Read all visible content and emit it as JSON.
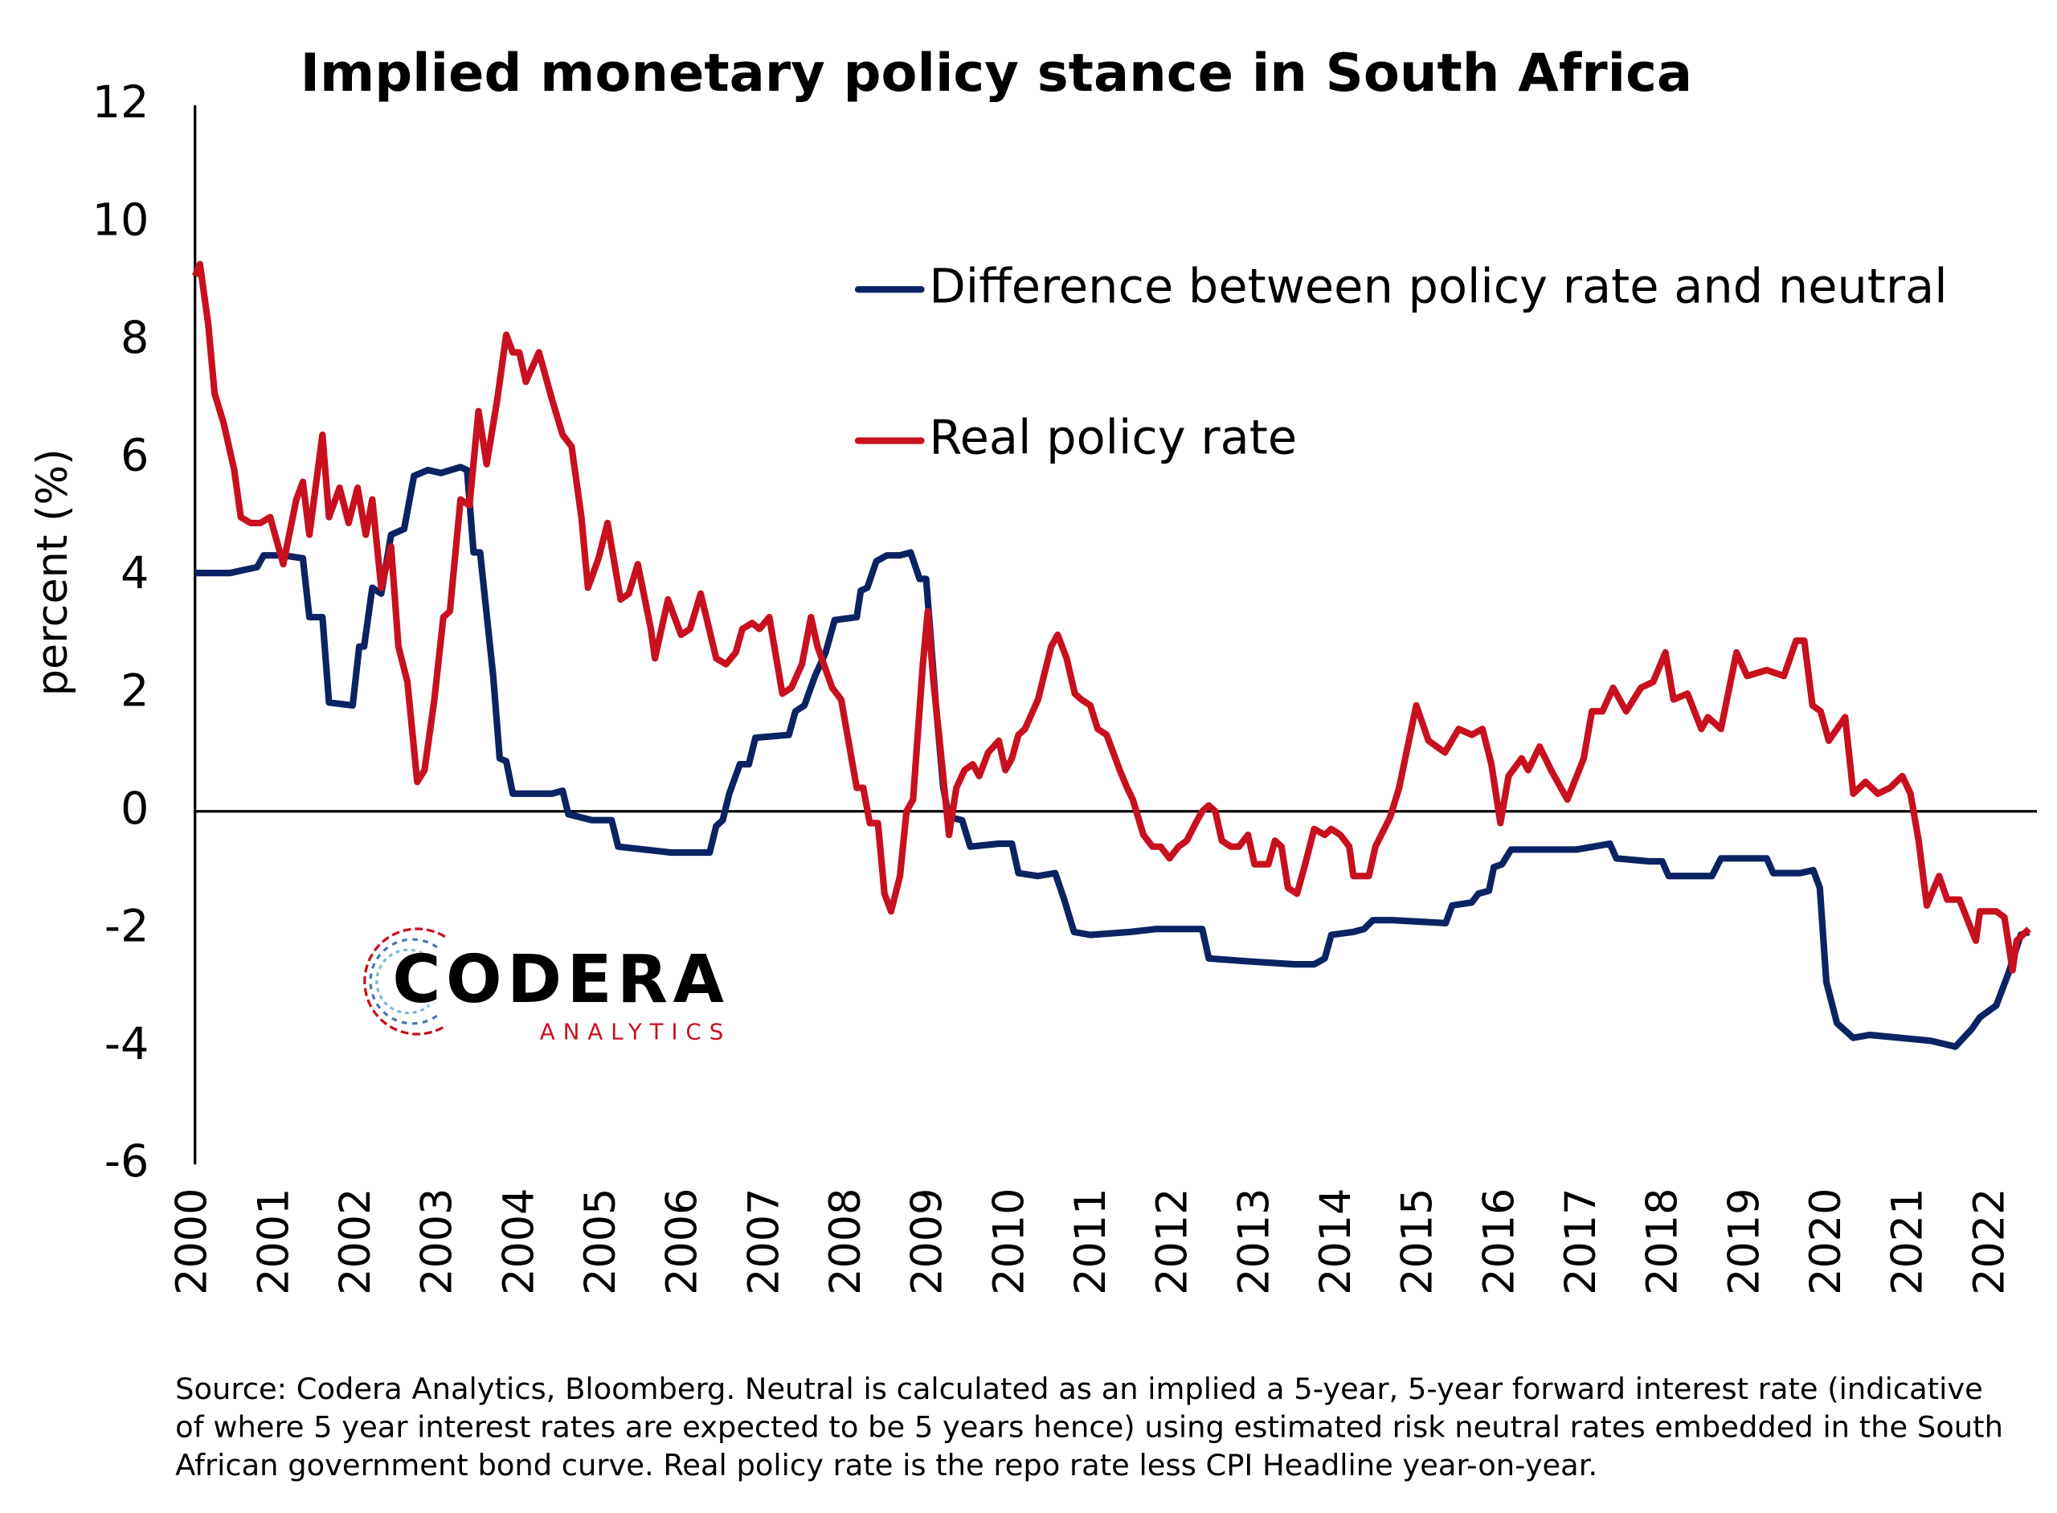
{
  "chart_data": {
    "type": "line",
    "title": "Implied monetary policy stance in South Africa",
    "y_label": "percent (%)",
    "xlim": [
      2000,
      2022.5
    ],
    "xticks": [
      2000,
      2001,
      2002,
      2003,
      2004,
      2005,
      2006,
      2007,
      2008,
      2009,
      2010,
      2011,
      2012,
      2013,
      2014,
      2015,
      2016,
      2017,
      2018,
      2019,
      2020,
      2021,
      2022
    ],
    "ylim": [
      -6,
      12
    ],
    "yticks": [
      12,
      10,
      8,
      6,
      4,
      2,
      0,
      -2,
      -4,
      -6
    ],
    "grid": false,
    "series": [
      {
        "name": "Difference between policy rate and neutral",
        "color": "#0c2363",
        "x": [
          2000,
          2000.43,
          2000.59,
          2000.76,
          2000.84,
          2001.08,
          2001.32,
          2001.4,
          2001.56,
          2001.64,
          2001.93,
          2002.01,
          2002.07,
          2002.17,
          2002.28,
          2002.4,
          2002.56,
          2002.68,
          2002.85,
          2003.01,
          2003.25,
          2003.33,
          2003.41,
          2003.49,
          2003.65,
          2003.73,
          2003.81,
          2003.89,
          2004.21,
          2004.37,
          2004.5,
          2004.57,
          2004.86,
          2005.1,
          2005.18,
          2005.5,
          2005.82,
          2006.3,
          2006.38,
          2006.46,
          2006.54,
          2006.67,
          2006.78,
          2006.86,
          2007.27,
          2007.35,
          2007.46,
          2007.59,
          2007.72,
          2007.83,
          2008.1,
          2008.15,
          2008.23,
          2008.34,
          2008.47,
          2008.63,
          2008.76,
          2008.87,
          2008.95,
          2009.07,
          2009.16,
          2009.23,
          2009.39,
          2009.49,
          2009.84,
          2010,
          2010.08,
          2010.32,
          2010.53,
          2010.64,
          2010.76,
          2010.96,
          2011.45,
          2011.77,
          2012.33,
          2012.41,
          2012.89,
          2013.46,
          2013.7,
          2013.83,
          2013.91,
          2014.18,
          2014.31,
          2014.42,
          2014.66,
          2015.31,
          2015.39,
          2015.63,
          2015.71,
          2015.84,
          2015.9,
          2016,
          2016.11,
          2016.91,
          2017.12,
          2017.32,
          2017.4,
          2017.8,
          2017.96,
          2018.04,
          2018.57,
          2018.68,
          2019.24,
          2019.32,
          2019.65,
          2019.81,
          2019.89,
          2019.97,
          2020.1,
          2020.3,
          2020.5,
          2021.25,
          2021.55,
          2021.75,
          2021.85,
          2022.05,
          2022.2,
          2022.35,
          2022.45
        ],
        "values": [
          4.05,
          4.05,
          4.1,
          4.15,
          4.35,
          4.35,
          4.3,
          3.3,
          3.3,
          1.85,
          1.8,
          2.8,
          2.8,
          3.8,
          3.7,
          4.7,
          4.8,
          5.7,
          5.8,
          5.75,
          5.85,
          5.8,
          4.4,
          4.4,
          2.3,
          0.9,
          0.85,
          0.3,
          0.3,
          0.3,
          0.35,
          -0.05,
          -0.15,
          -0.15,
          -0.6,
          -0.65,
          -0.7,
          -0.7,
          -0.25,
          -0.15,
          0.3,
          0.8,
          0.8,
          1.25,
          1.3,
          1.7,
          1.8,
          2.3,
          2.7,
          3.25,
          3.3,
          3.75,
          3.8,
          4.25,
          4.35,
          4.35,
          4.4,
          3.95,
          3.95,
          1.8,
          0.4,
          -0.1,
          -0.15,
          -0.6,
          -0.55,
          -0.55,
          -1.05,
          -1.1,
          -1.05,
          -1.5,
          -2.05,
          -2.1,
          -2.05,
          -2,
          -2,
          -2.5,
          -2.55,
          -2.6,
          -2.6,
          -2.5,
          -2.1,
          -2.05,
          -2,
          -1.85,
          -1.85,
          -1.9,
          -1.6,
          -1.55,
          -1.4,
          -1.35,
          -0.95,
          -0.9,
          -0.65,
          -0.65,
          -0.6,
          -0.55,
          -0.8,
          -0.85,
          -0.85,
          -1.1,
          -1.1,
          -0.8,
          -0.8,
          -1.05,
          -1.05,
          -1,
          -1.3,
          -2.9,
          -3.6,
          -3.85,
          -3.8,
          -3.9,
          -4,
          -3.7,
          -3.5,
          -3.3,
          -2.75,
          -2.1,
          -2.05
        ]
      },
      {
        "name": "Real policy rate",
        "color": "#c8101e",
        "x": [
          2000,
          2000.06,
          2000.16,
          2000.24,
          2000.35,
          2000.48,
          2000.56,
          2000.68,
          2000.8,
          2000.92,
          2001.08,
          2001.24,
          2001.32,
          2001.4,
          2001.56,
          2001.64,
          2001.77,
          2001.88,
          2001.99,
          2002.09,
          2002.17,
          2002.28,
          2002.4,
          2002.49,
          2002.6,
          2002.72,
          2002.81,
          2002.93,
          2003.04,
          2003.12,
          2003.25,
          2003.36,
          2003.47,
          2003.57,
          2003.7,
          2003.81,
          2003.89,
          2003.97,
          2004.05,
          2004.21,
          2004.37,
          2004.5,
          2004.61,
          2004.73,
          2004.81,
          2004.94,
          2005.05,
          2005.21,
          2005.31,
          2005.42,
          2005.58,
          2005.63,
          2005.79,
          2005.95,
          2006.06,
          2006.19,
          2006.38,
          2006.5,
          2006.62,
          2006.7,
          2006.82,
          2006.91,
          2007.03,
          2007.19,
          2007.3,
          2007.43,
          2007.54,
          2007.62,
          2007.8,
          2007.91,
          2008.1,
          2008.18,
          2008.26,
          2008.36,
          2008.44,
          2008.52,
          2008.63,
          2008.71,
          2008.79,
          2008.91,
          2008.97,
          2009.04,
          2009.13,
          2009.23,
          2009.32,
          2009.42,
          2009.52,
          2009.6,
          2009.71,
          2009.84,
          2009.92,
          2010,
          2010.08,
          2010.16,
          2010.32,
          2010.48,
          2010.56,
          2010.67,
          2010.77,
          2010.85,
          2010.96,
          2011.05,
          2011.16,
          2011.32,
          2011.41,
          2011.48,
          2011.61,
          2011.72,
          2011.82,
          2011.93,
          2012.04,
          2012.14,
          2012.25,
          2012.33,
          2012.41,
          2012.49,
          2012.57,
          2012.68,
          2012.78,
          2012.89,
          2012.97,
          2013.14,
          2013.22,
          2013.3,
          2013.38,
          2013.49,
          2013.59,
          2013.7,
          2013.83,
          2013.91,
          2014.02,
          2014.13,
          2014.18,
          2014.37,
          2014.45,
          2014.63,
          2014.74,
          2014.86,
          2014.95,
          2015.1,
          2015.3,
          2015.47,
          2015.63,
          2015.76,
          2015.87,
          2015.98,
          2016.08,
          2016.24,
          2016.32,
          2016.46,
          2016.6,
          2016.8,
          2017,
          2017.1,
          2017.23,
          2017.36,
          2017.52,
          2017.7,
          2017.85,
          2018,
          2018.1,
          2018.27,
          2018.44,
          2018.52,
          2018.68,
          2018.87,
          2019,
          2019.24,
          2019.45,
          2019.6,
          2019.7,
          2019.8,
          2019.9,
          2020,
          2020.2,
          2020.3,
          2020.45,
          2020.6,
          2020.75,
          2020.9,
          2021,
          2021.1,
          2021.2,
          2021.35,
          2021.45,
          2021.6,
          2021.8,
          2021.85,
          2022.05,
          2022.15,
          2022.25,
          2022.3,
          2022.45
        ],
        "values": [
          9.1,
          9.3,
          8.3,
          7.1,
          6.6,
          5.8,
          5,
          4.9,
          4.9,
          5,
          4.2,
          5.3,
          5.6,
          4.7,
          6.4,
          5,
          5.5,
          4.9,
          5.5,
          4.7,
          5.3,
          3.8,
          4.5,
          2.8,
          2.2,
          0.5,
          0.7,
          1.9,
          3.3,
          3.4,
          5.3,
          5.2,
          6.8,
          5.9,
          7,
          8.1,
          7.8,
          7.8,
          7.3,
          7.8,
          7,
          6.4,
          6.2,
          5,
          3.8,
          4.3,
          4.9,
          3.6,
          3.7,
          4.2,
          3.1,
          2.6,
          3.6,
          3,
          3.1,
          3.7,
          2.6,
          2.5,
          2.7,
          3.1,
          3.2,
          3.1,
          3.3,
          2,
          2.1,
          2.5,
          3.3,
          2.8,
          2.1,
          1.9,
          0.4,
          0.4,
          -0.2,
          -0.2,
          -1.4,
          -1.7,
          -1.1,
          0,
          0.2,
          2.5,
          3.4,
          2.2,
          1,
          -0.4,
          0.4,
          0.7,
          0.8,
          0.6,
          1,
          1.2,
          0.7,
          0.9,
          1.3,
          1.4,
          1.9,
          2.8,
          3,
          2.6,
          2,
          1.9,
          1.8,
          1.4,
          1.3,
          0.7,
          0.4,
          0.2,
          -0.4,
          -0.6,
          -0.6,
          -0.8,
          -0.6,
          -0.5,
          -0.2,
          0,
          0.1,
          0,
          -0.5,
          -0.6,
          -0.6,
          -0.4,
          -0.9,
          -0.9,
          -0.5,
          -0.6,
          -1.3,
          -1.4,
          -0.9,
          -0.3,
          -0.4,
          -0.3,
          -0.4,
          -0.6,
          -1.1,
          -1.1,
          -0.6,
          -0.1,
          0.4,
          1.2,
          1.8,
          1.2,
          1,
          1.4,
          1.3,
          1.4,
          0.8,
          -0.2,
          0.6,
          0.9,
          0.7,
          1.1,
          0.7,
          0.2,
          0.9,
          1.7,
          1.7,
          2.1,
          1.7,
          2.1,
          2.2,
          2.7,
          1.9,
          2,
          1.4,
          1.6,
          1.4,
          2.7,
          2.3,
          2.4,
          2.3,
          2.9,
          2.9,
          1.8,
          1.7,
          1.2,
          1.6,
          0.3,
          0.5,
          0.3,
          0.4,
          0.6,
          0.3,
          -0.5,
          -1.6,
          -1.1,
          -1.5,
          -1.5,
          -2.2,
          -1.7,
          -1.7,
          -1.8,
          -2.7,
          -2.2,
          -2
        ]
      }
    ],
    "logo": {
      "name": "CODERA",
      "sub": "ANALYTICS"
    },
    "source": [
      "Source: Codera Analytics, Bloomberg. Neutral is calculated as an implied a 5-year, 5-year forward interest rate (indicative",
      "of where 5 year interest rates are expected to be 5 years hence) using estimated risk neutral rates embedded in the South",
      "African government bond curve. Real policy rate is the repo rate less CPI Headline year-on-year."
    ]
  }
}
